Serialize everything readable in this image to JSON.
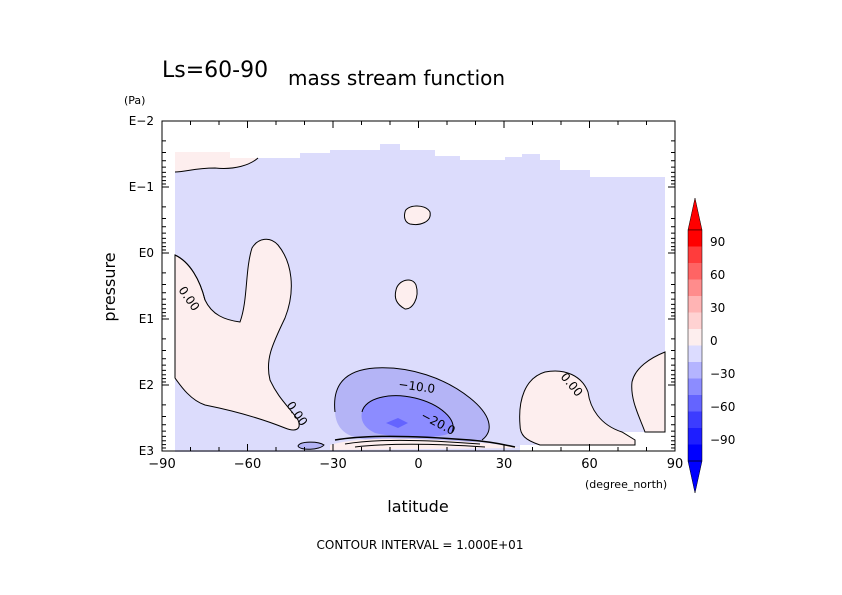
{
  "chart_data": {
    "type": "contour",
    "title_prefix": "Ls=60-90",
    "title_main": "mass stream function",
    "xlabel": "latitude",
    "x_unit": "(degree_north)",
    "ylabel": "pressure",
    "y_unit": "(Pa)",
    "xlim": [
      -90,
      90
    ],
    "x_ticks": [
      "−90",
      "−60",
      "−30",
      "0",
      "30",
      "60",
      "90"
    ],
    "y_scale": "log",
    "ylim_exponent": [
      -2,
      3
    ],
    "y_ticks": [
      "E−2",
      "E−1",
      "E0",
      "E1",
      "E2",
      "E3"
    ],
    "contour_interval_text": "CONTOUR INTERVAL = 1.000E+01",
    "contour_labels": [
      "0.00",
      "0.00",
      "0.00",
      "−10.0",
      "−20.0"
    ],
    "colorbar": {
      "levels": [
        "90",
        "60",
        "30",
        "0",
        "−30",
        "−60",
        "−90"
      ],
      "colors": [
        "#ff0000",
        "#ff3c3c",
        "#ff6464",
        "#ff8c8c",
        "#ffb4b4",
        "#ffd2d2",
        "#fdeeee",
        "#dcdcff",
        "#b4b4ff",
        "#8c8cff",
        "#6464ff",
        "#3c3cff",
        "#1e1eff",
        "#0000ff"
      ]
    },
    "fill_colors": {
      "negative_weak": "#dcdcfc",
      "negative_mid": "#b4b4f6",
      "negative_strong": "#8c8cff",
      "positive_weak": "#fdeeee"
    }
  }
}
